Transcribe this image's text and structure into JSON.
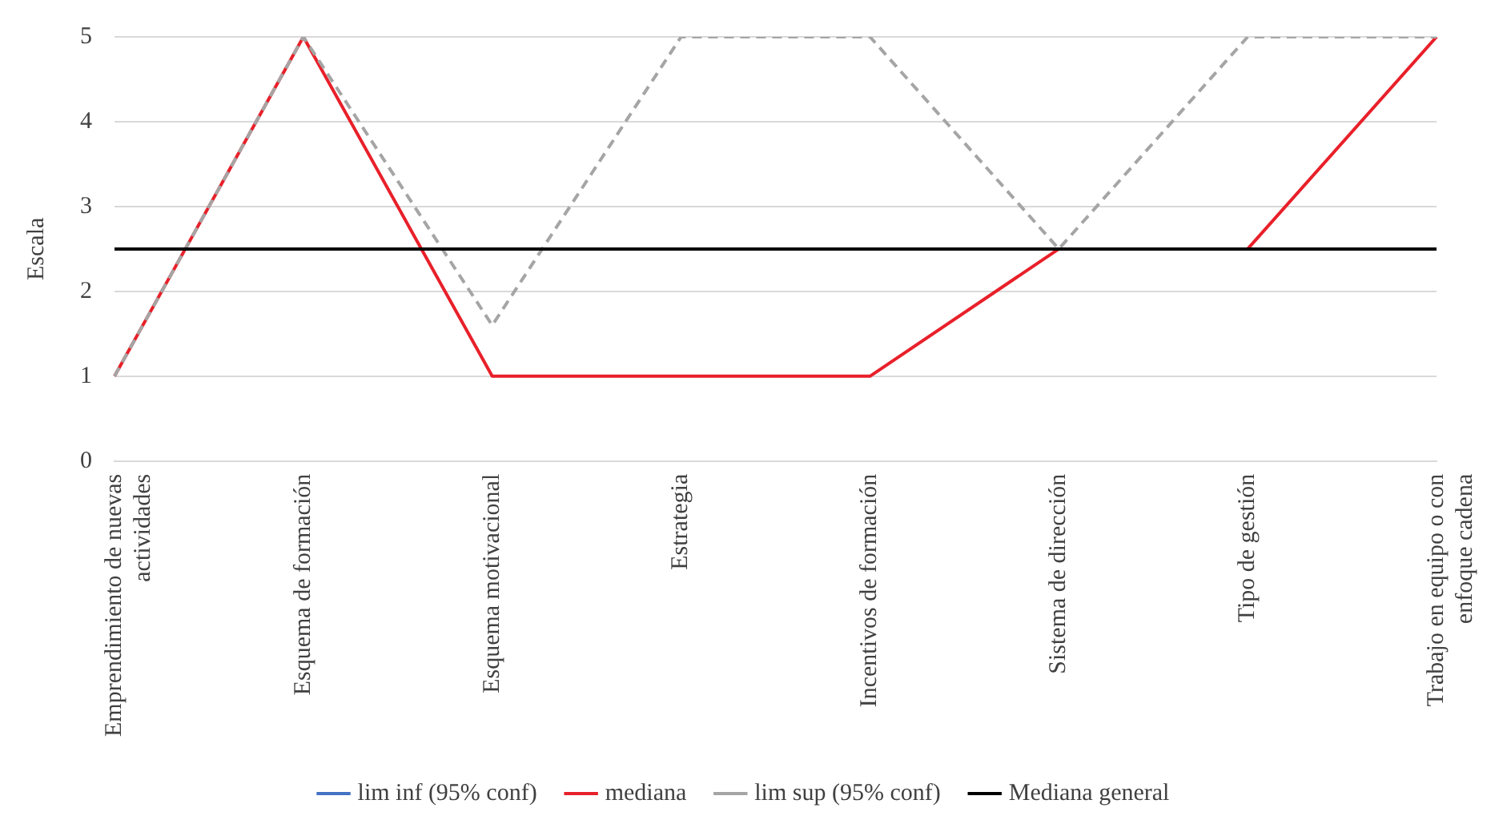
{
  "chart_data": {
    "type": "line",
    "ylabel": "Escala",
    "categories": [
      "Emprendimiento de nuevas actividades",
      "Esquema de formación",
      "Esquema motivacional",
      "Estrategia",
      "Incentivos de formación",
      "Sistema de dirección",
      "Tipo de gestión",
      "Trabajo en equipo o con enfoque cadena"
    ],
    "series": [
      {
        "name": "lim inf (95% conf)",
        "color": "#4472c4",
        "line_style": "dashed",
        "values": [
          null,
          null,
          null,
          null,
          null,
          null,
          null,
          null
        ]
      },
      {
        "name": "mediana",
        "color": "#e8202a",
        "line_style": "solid",
        "values": [
          1,
          5,
          1,
          1,
          1,
          2.5,
          2.5,
          5
        ]
      },
      {
        "name": "lim sup (95% conf)",
        "color": "#a5a5a5",
        "line_style": "dashed",
        "values": [
          1,
          5,
          1.6,
          5,
          5,
          2.5,
          5,
          5
        ]
      },
      {
        "name": "Mediana general",
        "color": "#000000",
        "line_style": "solid",
        "values": [
          2.5,
          2.5,
          2.5,
          2.5,
          2.5,
          2.5,
          2.5,
          2.5
        ]
      }
    ],
    "ylim": [
      0,
      5
    ],
    "yticks": [
      0,
      1,
      2,
      3,
      4,
      5
    ],
    "grid": "y",
    "legend": "bottom",
    "marker": "none"
  }
}
